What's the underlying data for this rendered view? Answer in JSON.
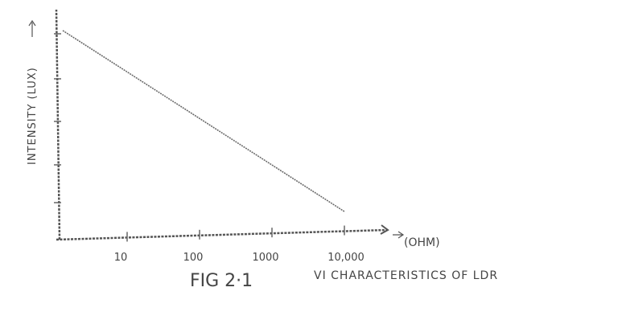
{
  "chart_data": {
    "type": "line",
    "title": "VI CHARACTERISTICS OF LDR",
    "figure_label": "FIG 2·1",
    "xlabel": "(OHM)",
    "ylabel": "INTENSITY (LUX)",
    "x_scale": "log",
    "xticks": [
      "10",
      "100",
      "1000",
      "10,000"
    ],
    "xtick_values": [
      10,
      100,
      1000,
      10000
    ],
    "yticks_labeled": false,
    "grid": false,
    "legend": "none",
    "series": [
      {
        "x": [
          2,
          10000
        ],
        "y": [
          1,
          0.03
        ]
      }
    ],
    "colors": {
      "axis": "#555555",
      "line": "#6a6a6a",
      "text": "#444444"
    }
  }
}
